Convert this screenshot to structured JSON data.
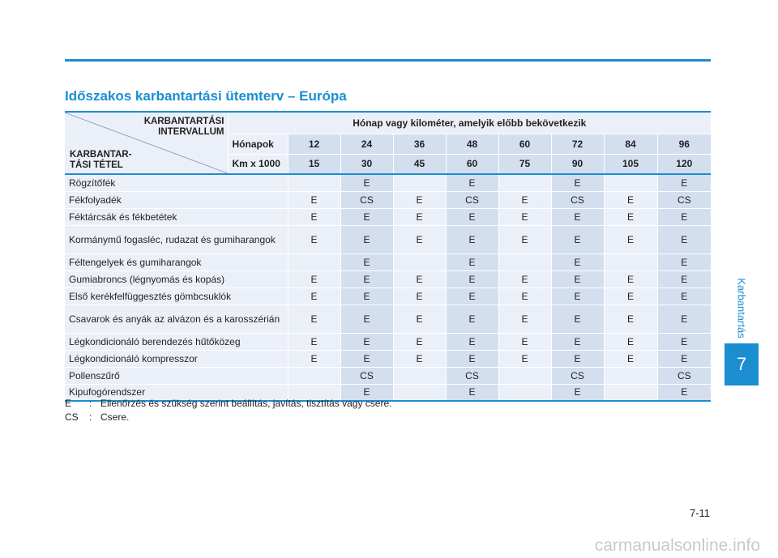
{
  "title": "Időszakos karbantartási ütemterv – Európa",
  "side_label": "Karbantartás",
  "chapter_number": "7",
  "page_number": "7-11",
  "watermark": "carmanualsonline.info",
  "table": {
    "corner_top": [
      "KARBANTARTÁSI",
      "INTERVALLUM"
    ],
    "corner_bottom": [
      "KARBANTAR-",
      "TÁSI TÉTEL"
    ],
    "header_main": "Hónap vagy kilométer, amelyik előbb bekövetkezik",
    "months_label": "Hónapok",
    "months": [
      "12",
      "24",
      "36",
      "48",
      "60",
      "72",
      "84",
      "96"
    ],
    "km_label": "Km x 1000",
    "km": [
      "15",
      "30",
      "45",
      "60",
      "75",
      "90",
      "105",
      "120"
    ],
    "rows": [
      {
        "item": "Rögzítőfék",
        "values": [
          "",
          "E",
          "",
          "E",
          "",
          "E",
          "",
          "E"
        ]
      },
      {
        "item": "Fékfolyadék",
        "values": [
          "E",
          "CS",
          "E",
          "CS",
          "E",
          "CS",
          "E",
          "CS"
        ]
      },
      {
        "item": "Féktárcsák és fékbetétek",
        "values": [
          "E",
          "E",
          "E",
          "E",
          "E",
          "E",
          "E",
          "E"
        ]
      },
      {
        "item": "Kormánymű fogasléc, rudazat és gumiharangok",
        "values": [
          "E",
          "E",
          "E",
          "E",
          "E",
          "E",
          "E",
          "E"
        ]
      },
      {
        "item": "Féltengelyek és gumiharangok",
        "values": [
          "",
          "E",
          "",
          "E",
          "",
          "E",
          "",
          "E"
        ]
      },
      {
        "item": "Gumiabroncs (légnyomás és kopás)",
        "values": [
          "E",
          "E",
          "E",
          "E",
          "E",
          "E",
          "E",
          "E"
        ]
      },
      {
        "item": "Első kerékfelfüggesztés gömbcsuklók",
        "values": [
          "E",
          "E",
          "E",
          "E",
          "E",
          "E",
          "E",
          "E"
        ]
      },
      {
        "item": "Csavarok és anyák az alvázon és a karosszérián",
        "values": [
          "E",
          "E",
          "E",
          "E",
          "E",
          "E",
          "E",
          "E"
        ]
      },
      {
        "item": "Légkondicionáló berendezés hűtőközeg",
        "values": [
          "E",
          "E",
          "E",
          "E",
          "E",
          "E",
          "E",
          "E"
        ]
      },
      {
        "item": "Légkondicionáló kompresszor",
        "values": [
          "E",
          "E",
          "E",
          "E",
          "E",
          "E",
          "E",
          "E"
        ]
      },
      {
        "item": "Pollenszűrő",
        "values": [
          "",
          "CS",
          "",
          "CS",
          "",
          "CS",
          "",
          "CS"
        ]
      },
      {
        "item": "Kipufogórendszer",
        "values": [
          "",
          "E",
          "",
          "E",
          "",
          "E",
          "",
          "E"
        ]
      }
    ]
  },
  "legend": [
    {
      "key": "E",
      "sep": ":",
      "text": "Ellenőrzés és szükség szerint beállítás, javítás, tisztítás vagy csere."
    },
    {
      "key": "CS",
      "sep": ":",
      "text": "Csere."
    }
  ],
  "colors": {
    "accent": "#1a8ed1",
    "cell_light": "#ebf0f8",
    "cell_dark": "#d3deef"
  }
}
